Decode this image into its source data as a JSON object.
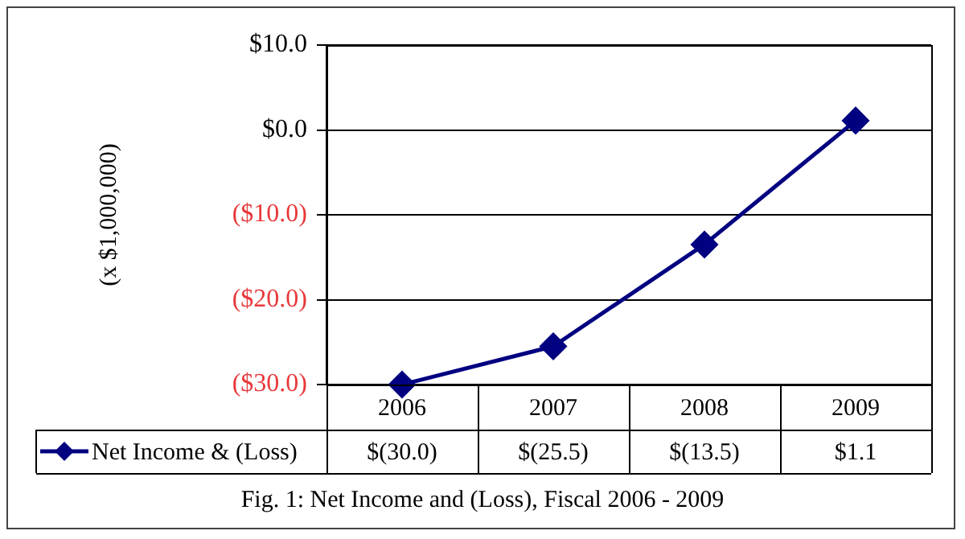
{
  "chart_data": {
    "type": "line",
    "ylabel": "(x $1,000,000)",
    "categories": [
      "2006",
      "2007",
      "2008",
      "2009"
    ],
    "series": [
      {
        "name": "Net Income & (Loss)",
        "color": "#000080",
        "values": [
          -30.0,
          -25.5,
          -13.5,
          1.1
        ],
        "value_labels": [
          "$(30.0)",
          "$(25.5)",
          "$(13.5)",
          "$1.1"
        ]
      }
    ],
    "ylim": [
      -30,
      10
    ],
    "yticks": [
      {
        "value": 10,
        "label": "$10.0"
      },
      {
        "value": 0,
        "label": "$0.0"
      },
      {
        "value": -10,
        "label": "($10.0)"
      },
      {
        "value": -20,
        "label": "($20.0)"
      },
      {
        "value": -30,
        "label": "($30.0)"
      }
    ],
    "grid": "y",
    "legend": "bottom left",
    "marker": "diamond",
    "line_style": "solid",
    "annotations": [
      "Fig. 1: Net Income and (Loss), Fiscal 2006 - 2009"
    ]
  }
}
